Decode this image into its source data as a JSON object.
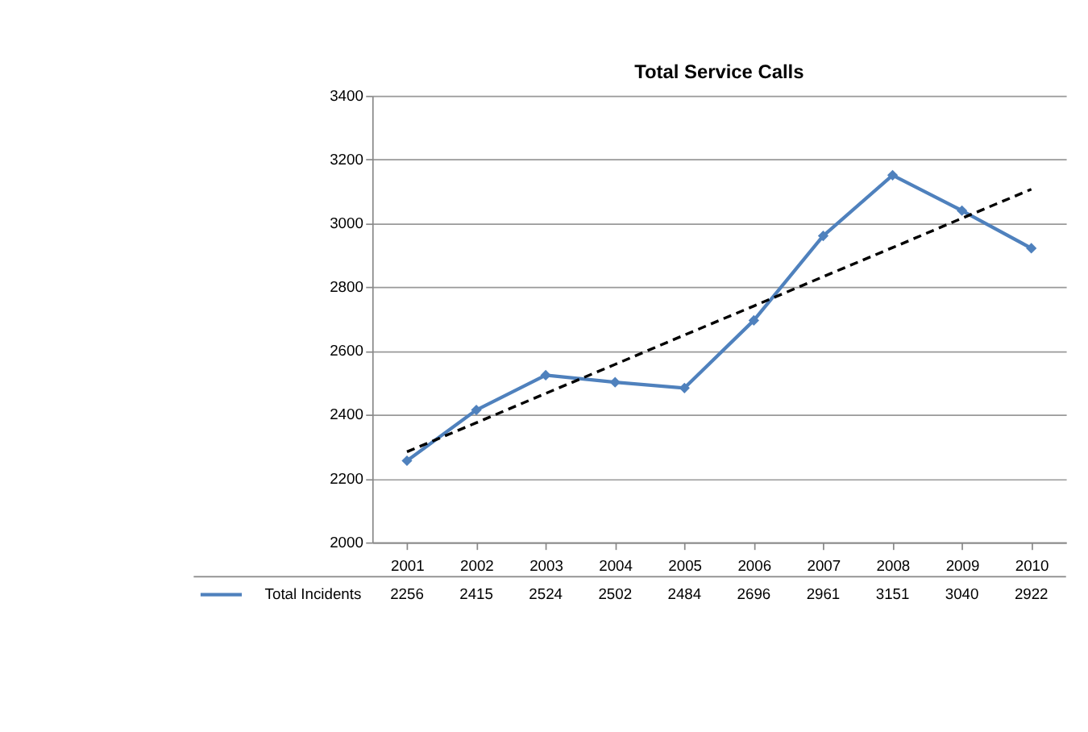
{
  "chart_data": {
    "type": "line",
    "title": "Total Service Calls",
    "categories": [
      "2001",
      "2002",
      "2003",
      "2004",
      "2005",
      "2006",
      "2007",
      "2008",
      "2009",
      "2010"
    ],
    "series": [
      {
        "name": "Total Incidents",
        "color": "#4f81bd",
        "values": [
          2256,
          2415,
          2524,
          2502,
          2484,
          2696,
          2961,
          3151,
          3040,
          2922
        ],
        "value_labels": [
          "2256",
          "2415",
          "2524",
          "2502",
          "2484",
          "2696",
          "2961",
          "3151",
          "3040",
          "2922"
        ],
        "marker": "diamond",
        "line_style": "solid"
      },
      {
        "type": "line",
        "color": "#000000",
        "values": [
          2284,
          2375,
          2467,
          2558,
          2650,
          2741,
          2833,
          2924,
          3016,
          3107
        ],
        "marker": "none",
        "line_style": "dashed"
      }
    ],
    "ylim": [
      2000,
      3400
    ],
    "yticks": [
      2000,
      2200,
      2400,
      2600,
      2800,
      3000,
      3200,
      3400
    ],
    "grid": "y",
    "legend": "bottom"
  }
}
